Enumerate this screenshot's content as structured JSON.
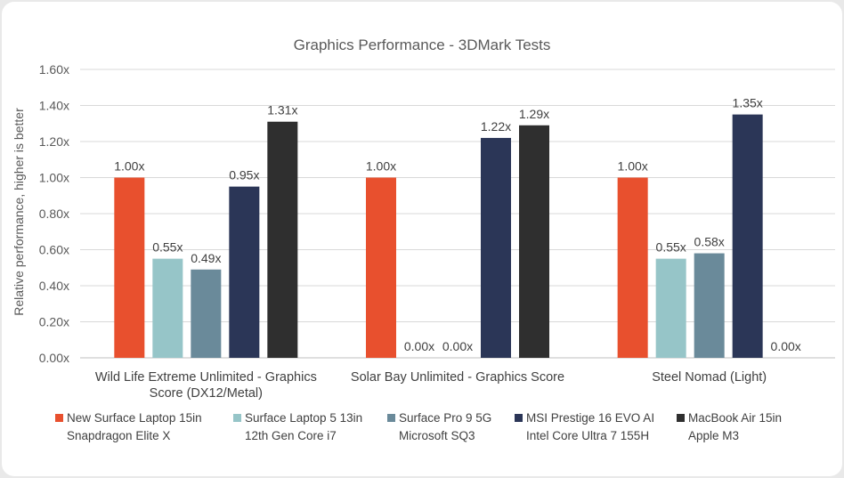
{
  "chart_data": {
    "type": "bar",
    "title": "Graphics Performance - 3DMark Tests",
    "ylabel": "Relative performance, higher is better",
    "xlabel": "",
    "ylim": [
      0,
      1.6
    ],
    "yticks": [
      "0.00x",
      "0.20x",
      "0.40x",
      "0.60x",
      "0.80x",
      "1.00x",
      "1.20x",
      "1.40x",
      "1.60x"
    ],
    "grid": true,
    "legend_position": "bottom",
    "categories": [
      [
        "Wild Life Extreme Unlimited - Graphics",
        "Score (DX12/Metal)"
      ],
      [
        "Solar Bay Unlimited - Graphics Score"
      ],
      [
        "Steel Nomad (Light)"
      ]
    ],
    "series": [
      {
        "name": [
          "New Surface Laptop 15in",
          "Snapdragon Elite X"
        ],
        "color": "#e8502e",
        "values": [
          1.0,
          1.0,
          1.0
        ],
        "labels": [
          "1.00x",
          "1.00x",
          "1.00x"
        ]
      },
      {
        "name": [
          "Surface Laptop 5 13in",
          "12th Gen Core i7"
        ],
        "color": "#96c5c8",
        "values": [
          0.55,
          0.0,
          0.55
        ],
        "labels": [
          "0.55x",
          "0.00x",
          "0.55x"
        ]
      },
      {
        "name": [
          "Surface Pro 9 5G",
          "Microsoft SQ3"
        ],
        "color": "#6a8a9a",
        "values": [
          0.49,
          0.0,
          0.58
        ],
        "labels": [
          "0.49x",
          "0.00x",
          "0.58x"
        ]
      },
      {
        "name": [
          "MSI Prestige 16 EVO AI",
          "Intel Core Ultra 7 155H"
        ],
        "color": "#2b3657",
        "values": [
          0.95,
          1.22,
          1.35
        ],
        "labels": [
          "0.95x",
          "1.22x",
          "1.35x"
        ]
      },
      {
        "name": [
          "MacBook Air 15in",
          "Apple M3"
        ],
        "color": "#2f2f2f",
        "values": [
          1.31,
          1.29,
          0.0
        ],
        "labels": [
          "1.31x",
          "1.29x",
          "0.00x"
        ]
      }
    ]
  }
}
